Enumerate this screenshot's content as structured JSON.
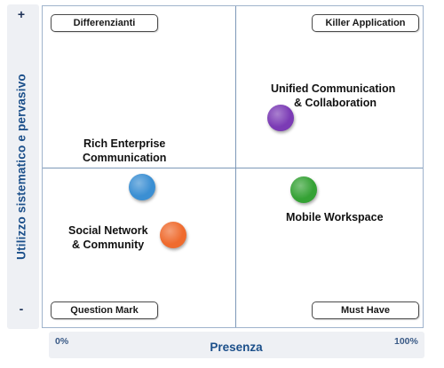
{
  "axes": {
    "y_label": "Utilizzo sistematico e pervasivo",
    "y_top": "+",
    "y_bottom": "-",
    "x_label": "Presenza",
    "x_min": "0%",
    "x_max": "100%"
  },
  "quadrants": {
    "top_left": "Differenzianti",
    "top_right": "Killer Application",
    "bottom_left": "Question Mark",
    "bottom_right": "Must Have"
  },
  "items": [
    {
      "line1": "Unified Communication",
      "line2": "& Collaboration",
      "color": "#7b3bb5"
    },
    {
      "line1": "Rich Enterprise",
      "line2": "Communication",
      "color": "#3b8fd3"
    },
    {
      "line1": "Mobile Workspace",
      "color": "#35a235"
    },
    {
      "line1": "Social Network",
      "line2": "& Community",
      "color": "#ef6b2e"
    }
  ]
}
